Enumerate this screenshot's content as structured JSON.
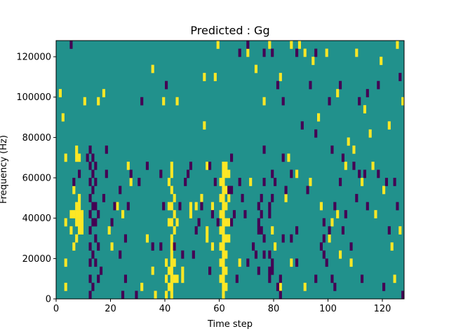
{
  "chart_data": {
    "type": "heatmap",
    "title": "Predicted : Gg",
    "xlabel": "Time step",
    "ylabel": "Frequency (Hz)",
    "xlim": [
      0,
      128
    ],
    "ylim": [
      0,
      128000
    ],
    "x_ticks": [
      0,
      20,
      40,
      60,
      80,
      100,
      120
    ],
    "y_ticks": [
      0,
      20000,
      40000,
      60000,
      80000,
      100000,
      120000
    ],
    "x_tick_labels": [
      "0",
      "20",
      "40",
      "60",
      "80",
      "100",
      "120"
    ],
    "y_tick_labels": [
      "0",
      "20000",
      "40000",
      "60000",
      "80000",
      "100000",
      "120000"
    ],
    "grid": false,
    "colormap": "viridis",
    "value_levels": [
      0,
      0.5,
      1
    ],
    "colors": {
      "low": "#440154",
      "mid": "#21918c",
      "high": "#fde725"
    },
    "background_value": 0.5,
    "cell_height_hz": 4000,
    "high_cells": [
      [
        42,
        0
      ],
      [
        42,
        4000
      ],
      [
        42,
        8000
      ],
      [
        42,
        12000
      ],
      [
        42,
        16000
      ],
      [
        42,
        20000
      ],
      [
        42,
        24000
      ],
      [
        42,
        28000
      ],
      [
        42,
        36000
      ],
      [
        42,
        44000
      ],
      [
        42,
        52000
      ],
      [
        42,
        60000
      ],
      [
        42,
        64000
      ],
      [
        43,
        8000
      ],
      [
        43,
        16000
      ],
      [
        43,
        24000
      ],
      [
        43,
        32000
      ],
      [
        43,
        40000
      ],
      [
        43,
        48000
      ],
      [
        41,
        4000
      ],
      [
        41,
        12000
      ],
      [
        41,
        36000
      ],
      [
        41,
        44000
      ],
      [
        41,
        56000
      ],
      [
        40,
        0
      ],
      [
        40,
        8000
      ],
      [
        40,
        16000
      ],
      [
        61,
        0
      ],
      [
        61,
        4000
      ],
      [
        61,
        8000
      ],
      [
        61,
        12000
      ],
      [
        61,
        16000
      ],
      [
        61,
        20000
      ],
      [
        61,
        24000
      ],
      [
        61,
        28000
      ],
      [
        61,
        32000
      ],
      [
        61,
        36000
      ],
      [
        61,
        40000
      ],
      [
        61,
        44000
      ],
      [
        61,
        48000
      ],
      [
        61,
        52000
      ],
      [
        61,
        56000
      ],
      [
        61,
        60000
      ],
      [
        61,
        64000
      ],
      [
        62,
        4000
      ],
      [
        62,
        12000
      ],
      [
        62,
        20000
      ],
      [
        62,
        28000
      ],
      [
        62,
        36000
      ],
      [
        62,
        44000
      ],
      [
        62,
        52000
      ],
      [
        62,
        60000
      ],
      [
        62,
        64000
      ],
      [
        60,
        8000
      ],
      [
        60,
        16000
      ],
      [
        60,
        24000
      ],
      [
        60,
        32000
      ],
      [
        60,
        40000
      ],
      [
        60,
        48000
      ],
      [
        60,
        56000
      ],
      [
        63,
        28000
      ],
      [
        63,
        36000
      ],
      [
        63,
        48000
      ],
      [
        63,
        60000
      ],
      [
        55,
        28000
      ],
      [
        55,
        32000
      ],
      [
        55,
        64000
      ],
      [
        57,
        24000
      ],
      [
        57,
        44000
      ],
      [
        8,
        32000
      ],
      [
        8,
        36000
      ],
      [
        8,
        40000
      ],
      [
        8,
        44000
      ],
      [
        8,
        48000
      ],
      [
        8,
        68000
      ],
      [
        9,
        32000
      ],
      [
        9,
        36000
      ],
      [
        9,
        40000
      ],
      [
        7,
        28000
      ],
      [
        7,
        36000
      ],
      [
        7,
        40000
      ],
      [
        7,
        44000
      ],
      [
        7,
        68000
      ],
      [
        7,
        72000
      ],
      [
        6,
        24000
      ],
      [
        6,
        40000
      ],
      [
        6,
        52000
      ],
      [
        5,
        32000
      ],
      [
        5,
        40000
      ],
      [
        3,
        36000
      ],
      [
        3,
        16000
      ],
      [
        3,
        4000
      ],
      [
        3,
        68000
      ],
      [
        1,
        100000
      ],
      [
        2,
        88000
      ],
      [
        10,
        96000
      ],
      [
        15,
        96000
      ],
      [
        17,
        100000
      ],
      [
        35,
        112000
      ],
      [
        39,
        96000
      ],
      [
        44,
        8000
      ],
      [
        44,
        36000
      ],
      [
        49,
        40000
      ],
      [
        49,
        44000
      ],
      [
        51,
        44000
      ],
      [
        46,
        8000
      ],
      [
        46,
        12000
      ],
      [
        44,
        96000
      ],
      [
        53,
        48000
      ],
      [
        54,
        84000
      ],
      [
        54,
        108000
      ],
      [
        58,
        108000
      ],
      [
        59,
        124000
      ],
      [
        36,
        0
      ],
      [
        31,
        4000
      ],
      [
        33,
        28000
      ],
      [
        35,
        12000
      ],
      [
        26,
        64000
      ],
      [
        27,
        56000
      ],
      [
        24,
        40000
      ],
      [
        20,
        24000
      ],
      [
        19,
        32000
      ],
      [
        22,
        44000
      ],
      [
        70,
        120000
      ],
      [
        73,
        112000
      ],
      [
        78,
        124000
      ],
      [
        82,
        108000
      ],
      [
        86,
        124000
      ],
      [
        89,
        124000
      ],
      [
        91,
        120000
      ],
      [
        94,
        116000
      ],
      [
        99,
        120000
      ],
      [
        103,
        100000
      ],
      [
        107,
        76000
      ],
      [
        110,
        120000
      ],
      [
        113,
        92000
      ],
      [
        116,
        64000
      ],
      [
        119,
        116000
      ],
      [
        122,
        84000
      ],
      [
        125,
        124000
      ],
      [
        127,
        96000
      ],
      [
        79,
        32000
      ],
      [
        84,
        48000
      ],
      [
        86,
        16000
      ],
      [
        88,
        60000
      ],
      [
        91,
        4000
      ],
      [
        93,
        56000
      ],
      [
        97,
        44000
      ],
      [
        100,
        28000
      ],
      [
        103,
        40000
      ],
      [
        106,
        64000
      ],
      [
        108,
        16000
      ],
      [
        112,
        56000
      ],
      [
        117,
        40000
      ],
      [
        120,
        52000
      ],
      [
        124,
        8000
      ],
      [
        126,
        32000
      ],
      [
        80,
        24000
      ],
      [
        82,
        4000
      ],
      [
        96,
        88000
      ],
      [
        101,
        36000
      ],
      [
        104,
        20000
      ],
      [
        109,
        72000
      ],
      [
        115,
        80000
      ],
      [
        123,
        24000
      ],
      [
        85,
        68000
      ],
      [
        76,
        96000
      ],
      [
        71,
        56000
      ],
      [
        67,
        16000
      ]
    ],
    "low_cells": [
      [
        12,
        0
      ],
      [
        12,
        8000
      ],
      [
        12,
        16000
      ],
      [
        12,
        24000
      ],
      [
        12,
        32000
      ],
      [
        12,
        40000
      ],
      [
        12,
        48000
      ],
      [
        12,
        56000
      ],
      [
        12,
        64000
      ],
      [
        12,
        72000
      ],
      [
        13,
        4000
      ],
      [
        13,
        20000
      ],
      [
        13,
        36000
      ],
      [
        13,
        44000
      ],
      [
        13,
        52000
      ],
      [
        13,
        60000
      ],
      [
        13,
        68000
      ],
      [
        14,
        16000
      ],
      [
        14,
        28000
      ],
      [
        14,
        36000
      ],
      [
        14,
        44000
      ],
      [
        14,
        56000
      ],
      [
        14,
        64000
      ],
      [
        15,
        8000
      ],
      [
        15,
        24000
      ],
      [
        15,
        40000
      ],
      [
        74,
        32000
      ],
      [
        74,
        36000
      ],
      [
        74,
        44000
      ],
      [
        75,
        32000
      ],
      [
        75,
        40000
      ],
      [
        75,
        48000
      ],
      [
        76,
        28000
      ],
      [
        76,
        20000
      ],
      [
        76,
        56000
      ],
      [
        78,
        8000
      ],
      [
        78,
        12000
      ],
      [
        78,
        20000
      ],
      [
        78,
        40000
      ],
      [
        78,
        44000
      ],
      [
        79,
        12000
      ],
      [
        79,
        16000
      ],
      [
        79,
        48000
      ],
      [
        63,
        52000
      ],
      [
        64,
        36000
      ],
      [
        64,
        52000
      ],
      [
        65,
        40000
      ],
      [
        64,
        68000
      ],
      [
        81,
        4000
      ],
      [
        82,
        0
      ],
      [
        82,
        8000
      ],
      [
        83,
        68000
      ],
      [
        84,
        52000
      ],
      [
        97,
        24000
      ],
      [
        98,
        20000
      ],
      [
        98,
        28000
      ],
      [
        99,
        16000
      ],
      [
        100,
        32000
      ],
      [
        98,
        36000
      ],
      [
        101,
        8000
      ],
      [
        102,
        44000
      ],
      [
        104,
        56000
      ],
      [
        106,
        40000
      ],
      [
        108,
        24000
      ],
      [
        110,
        48000
      ],
      [
        111,
        60000
      ],
      [
        112,
        8000
      ],
      [
        114,
        44000
      ],
      [
        118,
        60000
      ],
      [
        120,
        4000
      ],
      [
        122,
        32000
      ],
      [
        124,
        56000
      ],
      [
        127,
        0
      ],
      [
        5,
        124000
      ],
      [
        6,
        56000
      ],
      [
        8,
        60000
      ],
      [
        11,
        68000
      ],
      [
        17,
        48000
      ],
      [
        18,
        60000
      ],
      [
        20,
        36000
      ],
      [
        23,
        52000
      ],
      [
        24,
        0
      ],
      [
        25,
        28000
      ],
      [
        25,
        8000
      ],
      [
        26,
        44000
      ],
      [
        29,
        0
      ],
      [
        30,
        56000
      ],
      [
        16,
        12000
      ],
      [
        18,
        72000
      ],
      [
        21,
        44000
      ],
      [
        23,
        20000
      ],
      [
        27,
        60000
      ],
      [
        31,
        96000
      ],
      [
        33,
        64000
      ],
      [
        35,
        24000
      ],
      [
        38,
        60000
      ],
      [
        38,
        24000
      ],
      [
        39,
        44000
      ],
      [
        40,
        104000
      ],
      [
        43,
        24000
      ],
      [
        45,
        44000
      ],
      [
        46,
        20000
      ],
      [
        47,
        56000
      ],
      [
        48,
        60000
      ],
      [
        49,
        64000
      ],
      [
        50,
        20000
      ],
      [
        51,
        32000
      ],
      [
        52,
        36000
      ],
      [
        53,
        44000
      ],
      [
        56,
        64000
      ],
      [
        57,
        40000
      ],
      [
        58,
        56000
      ],
      [
        59,
        36000
      ],
      [
        56,
        12000
      ],
      [
        66,
        8000
      ],
      [
        67,
        56000
      ],
      [
        68,
        48000
      ],
      [
        69,
        40000
      ],
      [
        70,
        16000
      ],
      [
        72,
        24000
      ],
      [
        73,
        20000
      ],
      [
        74,
        12000
      ],
      [
        76,
        72000
      ],
      [
        79,
        60000
      ],
      [
        80,
        56000
      ],
      [
        83,
        28000
      ],
      [
        86,
        28000
      ],
      [
        88,
        32000
      ],
      [
        67,
        120000
      ],
      [
        70,
        124000
      ],
      [
        76,
        120000
      ],
      [
        79,
        120000
      ],
      [
        81,
        104000
      ],
      [
        83,
        96000
      ],
      [
        88,
        120000
      ],
      [
        93,
        104000
      ],
      [
        95,
        120000
      ],
      [
        100,
        96000
      ],
      [
        104,
        104000
      ],
      [
        111,
        96000
      ],
      [
        114,
        100000
      ],
      [
        118,
        104000
      ],
      [
        126,
        108000
      ],
      [
        90,
        84000
      ],
      [
        95,
        80000
      ],
      [
        101,
        72000
      ],
      [
        105,
        68000
      ],
      [
        109,
        64000
      ],
      [
        113,
        60000
      ],
      [
        121,
        56000
      ],
      [
        125,
        44000
      ],
      [
        102,
        4000
      ],
      [
        95,
        8000
      ],
      [
        88,
        16000
      ],
      [
        86,
        60000
      ],
      [
        92,
        52000
      ],
      [
        105,
        32000
      ]
    ]
  }
}
